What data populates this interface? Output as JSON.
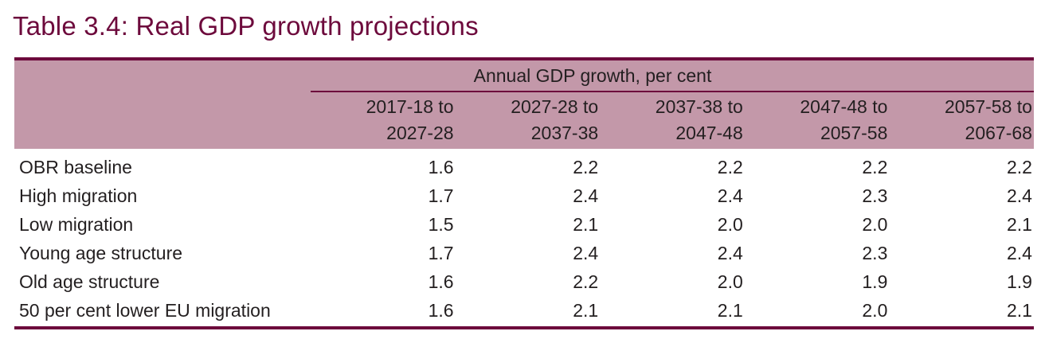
{
  "title": "Table 3.4: Real GDP growth projections",
  "table": {
    "span_header": "Annual GDP growth, per cent",
    "columns": [
      {
        "line1": "2017-18 to",
        "line2": "2027-28"
      },
      {
        "line1": "2027-28 to",
        "line2": "2037-38"
      },
      {
        "line1": "2037-38 to",
        "line2": "2047-48"
      },
      {
        "line1": "2047-48 to",
        "line2": "2057-58"
      },
      {
        "line1": "2057-58 to",
        "line2": "2067-68"
      }
    ],
    "rows": [
      {
        "label": "OBR baseline",
        "values": [
          "1.6",
          "2.2",
          "2.2",
          "2.2",
          "2.2"
        ]
      },
      {
        "label": "High migration",
        "values": [
          "1.7",
          "2.4",
          "2.4",
          "2.3",
          "2.4"
        ]
      },
      {
        "label": "Low migration",
        "values": [
          "1.5",
          "2.1",
          "2.0",
          "2.0",
          "2.1"
        ]
      },
      {
        "label": "Young age structure",
        "values": [
          "1.7",
          "2.4",
          "2.4",
          "2.3",
          "2.4"
        ]
      },
      {
        "label": "Old age structure",
        "values": [
          "1.6",
          "2.2",
          "2.0",
          "1.9",
          "1.9"
        ]
      },
      {
        "label": "50 per cent lower EU migration",
        "values": [
          "1.6",
          "2.1",
          "2.1",
          "2.0",
          "2.1"
        ]
      }
    ]
  },
  "colors": {
    "accent": "#6d0a3c",
    "header_band": "#c398a9",
    "text": "#231f20"
  }
}
